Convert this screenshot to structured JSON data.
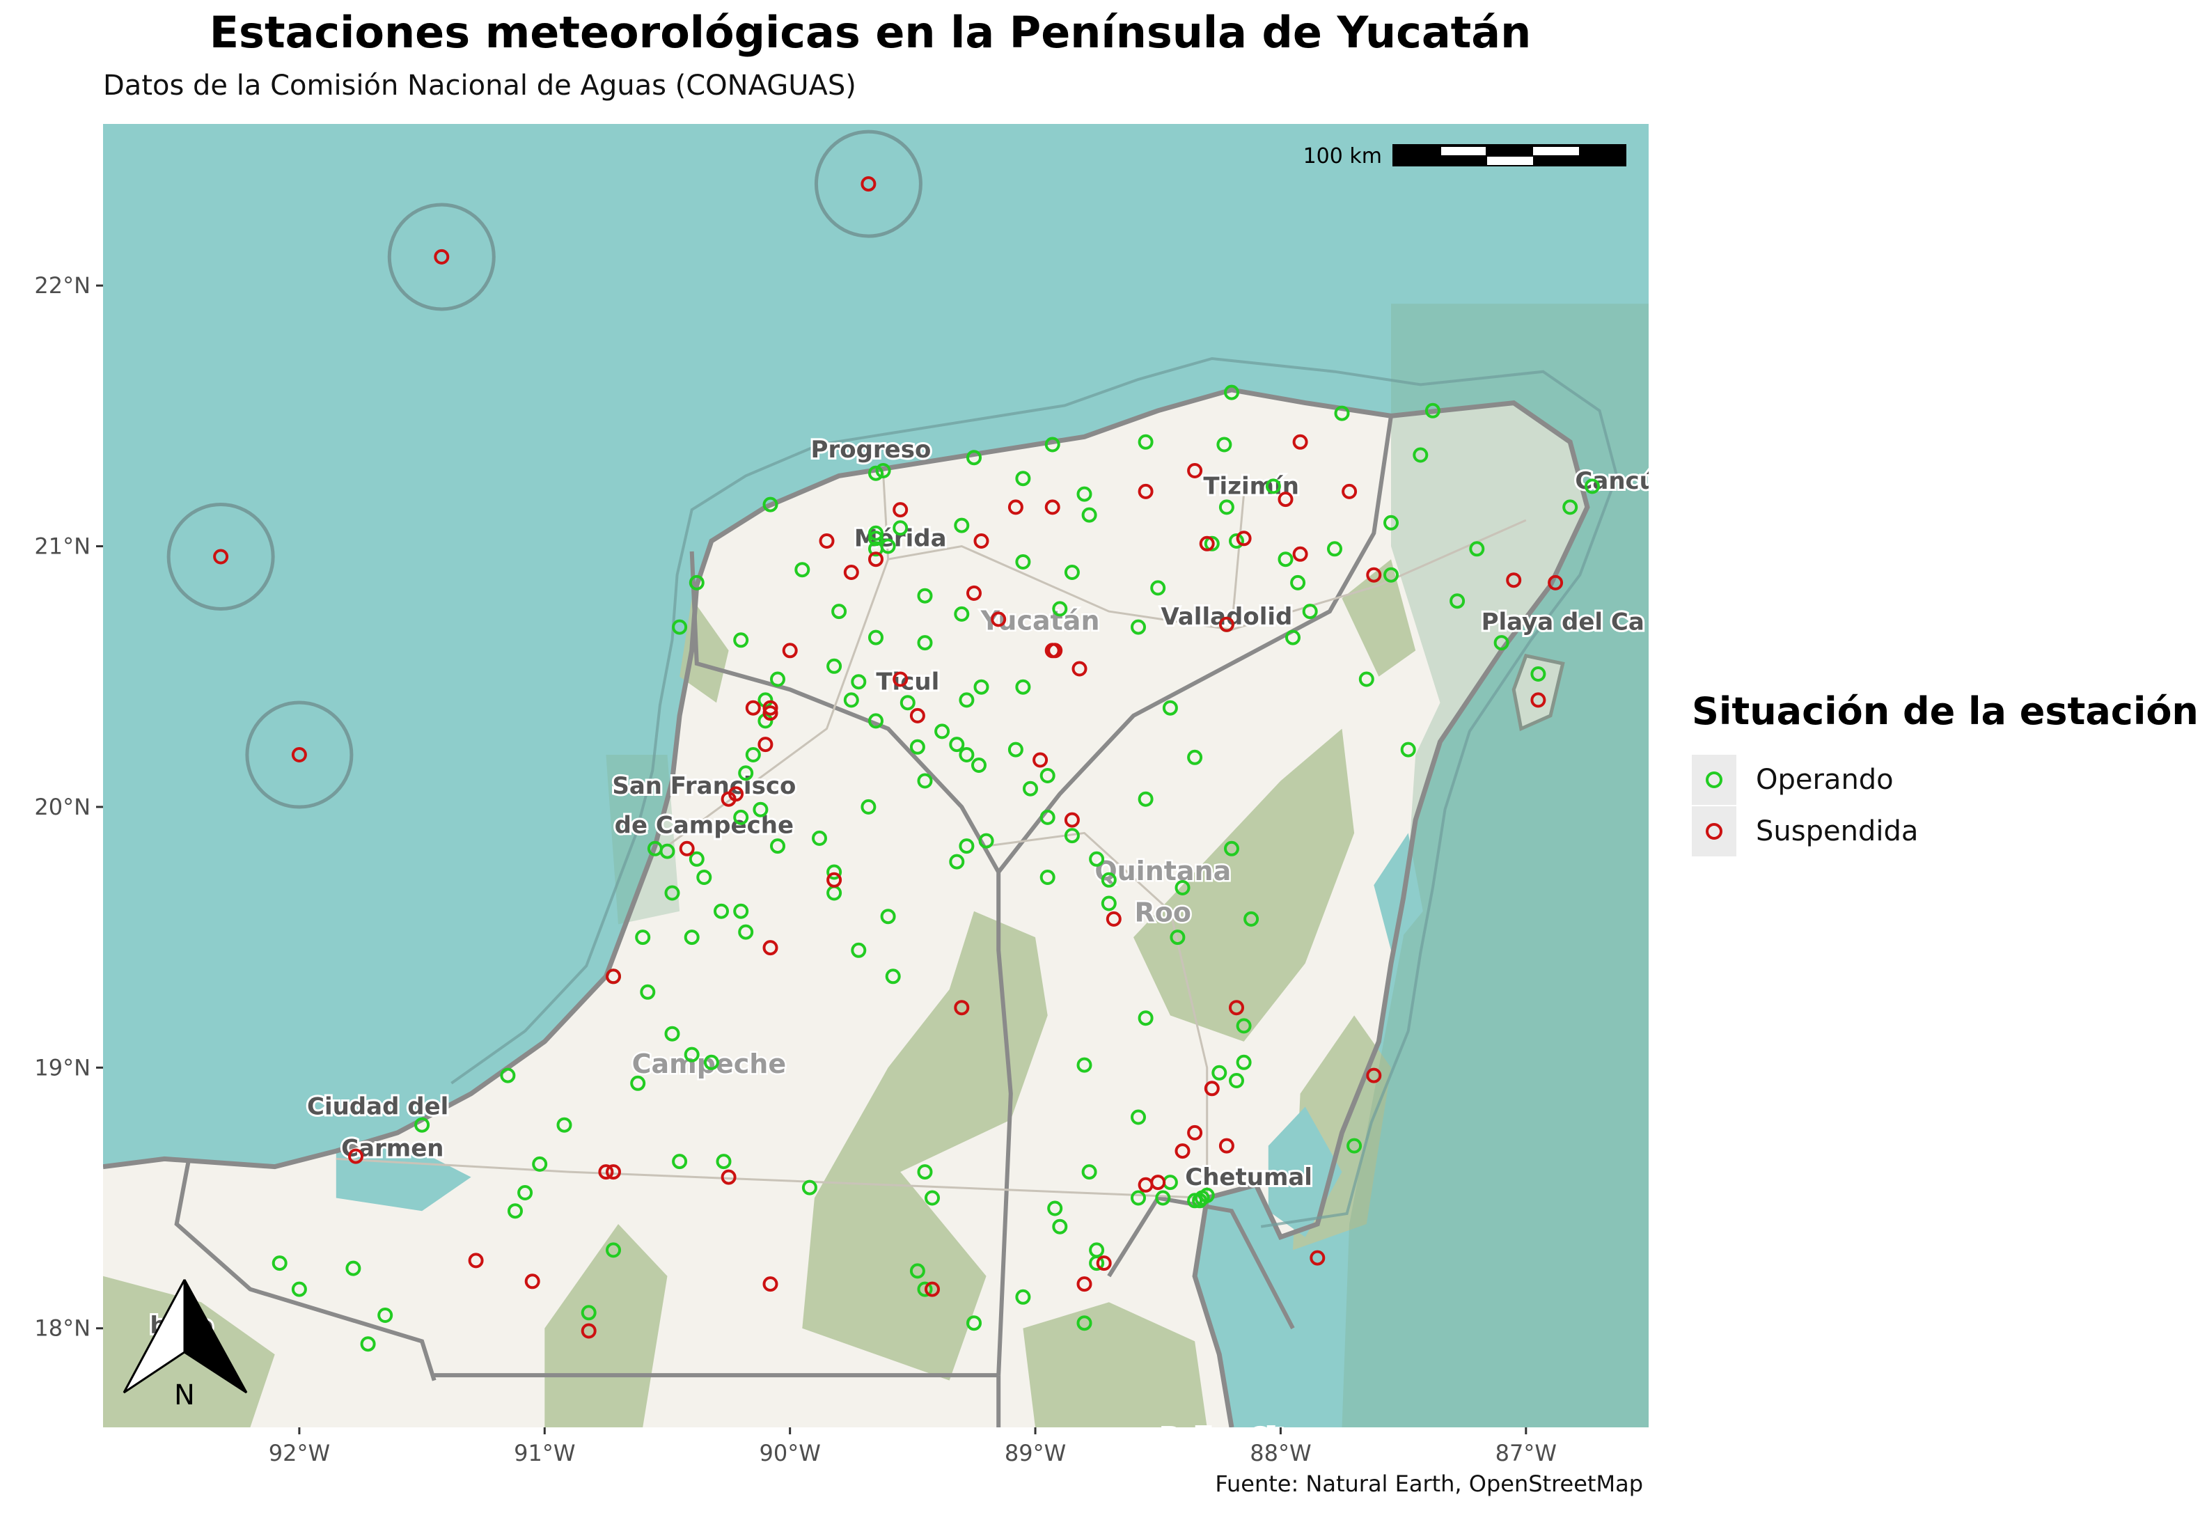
{
  "title": "Estaciones meteorológicas en la Península de Yucatán",
  "subtitle": "Datos de la Comisión Nacional de Aguas (CONAGUAS)",
  "caption": "Fuente: Natural Earth, OpenStreetMap",
  "scale_bar": {
    "label": "100 km"
  },
  "north_arrow": {
    "label": "N"
  },
  "legend": {
    "title": "Situación de la estación",
    "items": [
      {
        "label": "Operando",
        "color": "#22cc22"
      },
      {
        "label": "Suspendida",
        "color": "#cc1111"
      }
    ]
  },
  "colors": {
    "sea": "#8ecdcb",
    "land": "#f4f2ec",
    "forest": "#b7c8a0",
    "reserve": "#a6c4a8",
    "border": "#8a8a8a"
  },
  "axes": {
    "x_ticks": [
      {
        "value": -92,
        "label": "92°W"
      },
      {
        "value": -91,
        "label": "91°W"
      },
      {
        "value": -90,
        "label": "90°W"
      },
      {
        "value": -89,
        "label": "89°W"
      },
      {
        "value": -88,
        "label": "88°W"
      },
      {
        "value": -87,
        "label": "87°W"
      }
    ],
    "y_ticks": [
      {
        "value": 18,
        "label": "18°N"
      },
      {
        "value": 19,
        "label": "19°N"
      },
      {
        "value": 20,
        "label": "20°N"
      },
      {
        "value": 21,
        "label": "21°N"
      },
      {
        "value": 22,
        "label": "22°N"
      }
    ]
  },
  "places": [
    {
      "name": "Progreso",
      "lon": -89.67,
      "lat": 21.34
    },
    {
      "name": "Mérida",
      "lon": -89.55,
      "lat": 21.0
    },
    {
      "name": "Tizimín",
      "lon": -88.12,
      "lat": 21.2
    },
    {
      "name": "Valladolid",
      "lon": -88.22,
      "lat": 20.7
    },
    {
      "name": "Ticul",
      "lon": -89.52,
      "lat": 20.45
    },
    {
      "name": "San Francisco",
      "lon": -90.35,
      "lat": 20.05
    },
    {
      "name": "de Campeche",
      "lon": -90.35,
      "lat": 19.9
    },
    {
      "name": "Ciudad del",
      "lon": -91.68,
      "lat": 18.82
    },
    {
      "name": "Carmen",
      "lon": -91.62,
      "lat": 18.66
    },
    {
      "name": "Chetumal",
      "lon": -88.13,
      "lat": 18.55
    },
    {
      "name": "Cancún",
      "lon": -86.6,
      "lat": 21.22
    },
    {
      "name": "Playa del Ca",
      "lon": -86.85,
      "lat": 20.68
    },
    {
      "name": "Belize City",
      "lon": -88.2,
      "lat": 17.55
    },
    {
      "name": "baso",
      "lon": -92.48,
      "lat": 17.98
    }
  ],
  "state_labels": [
    {
      "name": "Yucatán",
      "lon": -88.98,
      "lat": 20.68
    },
    {
      "name": "Campeche",
      "lon": -90.33,
      "lat": 18.98
    },
    {
      "name": "Quintana",
      "lon": -88.48,
      "lat": 19.72
    },
    {
      "name": "Roo",
      "lon": -88.48,
      "lat": 19.56
    }
  ],
  "chart_data": {
    "type": "scatter",
    "xlim": [
      -92.8,
      -86.5
    ],
    "ylim": [
      17.62,
      22.62
    ],
    "series": [
      {
        "name": "Operando",
        "color": "#22cc22",
        "points": [
          [
            -89.65,
            21.28
          ],
          [
            -89.62,
            21.29
          ],
          [
            -89.25,
            21.34
          ],
          [
            -89.05,
            21.26
          ],
          [
            -88.93,
            21.39
          ],
          [
            -88.55,
            21.4
          ],
          [
            -88.2,
            21.59
          ],
          [
            -88.23,
            21.39
          ],
          [
            -88.03,
            21.23
          ],
          [
            -87.75,
            21.51
          ],
          [
            -87.38,
            21.52
          ],
          [
            -87.43,
            21.35
          ],
          [
            -86.73,
            21.23
          ],
          [
            -86.82,
            21.15
          ],
          [
            -90.08,
            21.16
          ],
          [
            -89.55,
            21.07
          ],
          [
            -89.65,
            21.05
          ],
          [
            -89.6,
            21.0
          ],
          [
            -89.65,
            20.99
          ],
          [
            -89.65,
            21.03
          ],
          [
            -89.3,
            21.08
          ],
          [
            -88.8,
            21.2
          ],
          [
            -88.78,
            21.12
          ],
          [
            -88.28,
            21.01
          ],
          [
            -88.18,
            21.02
          ],
          [
            -88.22,
            21.15
          ],
          [
            -87.98,
            20.95
          ],
          [
            -87.93,
            20.86
          ],
          [
            -87.88,
            20.75
          ],
          [
            -87.78,
            20.99
          ],
          [
            -87.55,
            21.09
          ],
          [
            -87.2,
            20.99
          ],
          [
            -87.28,
            20.79
          ],
          [
            -87.55,
            20.89
          ],
          [
            -87.65,
            20.49
          ],
          [
            -90.38,
            20.86
          ],
          [
            -90.45,
            20.69
          ],
          [
            -89.95,
            20.91
          ],
          [
            -89.8,
            20.75
          ],
          [
            -89.45,
            20.81
          ],
          [
            -89.3,
            20.74
          ],
          [
            -89.05,
            20.94
          ],
          [
            -88.9,
            20.76
          ],
          [
            -88.58,
            20.69
          ],
          [
            -88.85,
            20.9
          ],
          [
            -88.5,
            20.84
          ],
          [
            -88.22,
            20.7
          ],
          [
            -87.95,
            20.65
          ],
          [
            -87.1,
            20.63
          ],
          [
            -86.95,
            20.51
          ],
          [
            -90.2,
            20.64
          ],
          [
            -90.05,
            20.49
          ],
          [
            -89.82,
            20.54
          ],
          [
            -89.72,
            20.48
          ],
          [
            -89.75,
            20.41
          ],
          [
            -89.65,
            20.65
          ],
          [
            -89.45,
            20.63
          ],
          [
            -89.28,
            20.41
          ],
          [
            -89.22,
            20.46
          ],
          [
            -89.05,
            20.46
          ],
          [
            -88.45,
            20.38
          ],
          [
            -90.1,
            20.41
          ],
          [
            -90.1,
            20.33
          ],
          [
            -89.65,
            20.33
          ],
          [
            -89.52,
            20.4
          ],
          [
            -89.48,
            20.23
          ],
          [
            -89.38,
            20.29
          ],
          [
            -89.32,
            20.24
          ],
          [
            -89.28,
            20.2
          ],
          [
            -89.23,
            20.16
          ],
          [
            -89.08,
            20.22
          ],
          [
            -88.95,
            20.12
          ],
          [
            -89.02,
            20.07
          ],
          [
            -88.55,
            20.03
          ],
          [
            -88.35,
            20.19
          ],
          [
            -87.48,
            20.22
          ],
          [
            -90.15,
            20.2
          ],
          [
            -90.18,
            20.13
          ],
          [
            -90.12,
            19.99
          ],
          [
            -90.05,
            19.85
          ],
          [
            -90.2,
            19.96
          ],
          [
            -89.88,
            19.88
          ],
          [
            -89.68,
            20.0
          ],
          [
            -89.45,
            20.1
          ],
          [
            -89.32,
            19.79
          ],
          [
            -89.28,
            19.85
          ],
          [
            -89.2,
            19.87
          ],
          [
            -88.95,
            19.96
          ],
          [
            -88.85,
            19.89
          ],
          [
            -88.75,
            19.8
          ],
          [
            -88.95,
            19.73
          ],
          [
            -88.7,
            19.72
          ],
          [
            -88.7,
            19.63
          ],
          [
            -88.4,
            19.69
          ],
          [
            -88.2,
            19.84
          ],
          [
            -88.12,
            19.57
          ],
          [
            -88.42,
            19.5
          ],
          [
            -90.55,
            19.84
          ],
          [
            -90.5,
            19.83
          ],
          [
            -90.38,
            19.8
          ],
          [
            -90.35,
            19.73
          ],
          [
            -90.48,
            19.67
          ],
          [
            -90.28,
            19.6
          ],
          [
            -90.2,
            19.6
          ],
          [
            -90.18,
            19.52
          ],
          [
            -89.82,
            19.75
          ],
          [
            -89.82,
            19.67
          ],
          [
            -89.6,
            19.58
          ],
          [
            -89.72,
            19.45
          ],
          [
            -89.58,
            19.35
          ],
          [
            -90.6,
            19.5
          ],
          [
            -90.4,
            19.5
          ],
          [
            -90.72,
            19.35
          ],
          [
            -90.58,
            19.29
          ],
          [
            -90.48,
            19.13
          ],
          [
            -90.4,
            19.05
          ],
          [
            -90.32,
            19.02
          ],
          [
            -90.62,
            18.94
          ],
          [
            -88.55,
            19.19
          ],
          [
            -88.15,
            19.16
          ],
          [
            -88.15,
            19.02
          ],
          [
            -88.18,
            18.95
          ],
          [
            -88.25,
            18.98
          ],
          [
            -88.8,
            19.01
          ],
          [
            -88.58,
            18.81
          ],
          [
            -88.78,
            18.6
          ],
          [
            -88.92,
            18.46
          ],
          [
            -88.9,
            18.39
          ],
          [
            -88.58,
            18.5
          ],
          [
            -88.48,
            18.5
          ],
          [
            -88.45,
            18.56
          ],
          [
            -88.33,
            18.49
          ],
          [
            -88.3,
            18.51
          ],
          [
            -88.32,
            18.5
          ],
          [
            -88.35,
            18.49
          ],
          [
            -87.7,
            18.7
          ],
          [
            -91.15,
            18.97
          ],
          [
            -91.08,
            18.52
          ],
          [
            -91.12,
            18.45
          ],
          [
            -91.02,
            18.63
          ],
          [
            -90.92,
            18.78
          ],
          [
            -90.45,
            18.64
          ],
          [
            -90.27,
            18.64
          ],
          [
            -89.92,
            18.54
          ],
          [
            -89.45,
            18.6
          ],
          [
            -89.42,
            18.5
          ],
          [
            -90.72,
            18.3
          ],
          [
            -91.5,
            18.78
          ],
          [
            -92.08,
            18.25
          ],
          [
            -92.0,
            18.15
          ],
          [
            -91.78,
            18.23
          ],
          [
            -91.65,
            18.05
          ],
          [
            -91.72,
            17.94
          ],
          [
            -90.82,
            18.06
          ],
          [
            -89.48,
            18.22
          ],
          [
            -89.45,
            18.15
          ],
          [
            -89.05,
            18.12
          ],
          [
            -89.25,
            18.02
          ],
          [
            -88.75,
            18.3
          ],
          [
            -88.75,
            18.25
          ],
          [
            -88.8,
            18.02
          ]
        ]
      },
      {
        "name": "Suspendida",
        "color": "#cc1111",
        "points": [
          [
            -89.68,
            22.39
          ],
          [
            -91.42,
            22.11
          ],
          [
            -92.32,
            20.96
          ],
          [
            -92.0,
            20.2
          ],
          [
            -87.92,
            21.4
          ],
          [
            -88.35,
            21.29
          ],
          [
            -88.55,
            21.21
          ],
          [
            -88.93,
            21.15
          ],
          [
            -89.08,
            21.15
          ],
          [
            -89.55,
            21.14
          ],
          [
            -87.72,
            21.21
          ],
          [
            -87.98,
            21.18
          ],
          [
            -88.3,
            21.01
          ],
          [
            -88.15,
            21.03
          ],
          [
            -87.92,
            20.97
          ],
          [
            -87.62,
            20.89
          ],
          [
            -87.05,
            20.87
          ],
          [
            -86.88,
            20.86
          ],
          [
            -86.95,
            20.41
          ],
          [
            -89.85,
            21.02
          ],
          [
            -89.65,
            20.95
          ],
          [
            -89.75,
            20.9
          ],
          [
            -89.22,
            21.02
          ],
          [
            -89.25,
            20.82
          ],
          [
            -89.15,
            20.72
          ],
          [
            -88.22,
            20.7
          ],
          [
            -88.92,
            20.6
          ],
          [
            -88.93,
            20.6
          ],
          [
            -88.82,
            20.53
          ],
          [
            -89.55,
            20.49
          ],
          [
            -90.0,
            20.6
          ],
          [
            -90.15,
            20.38
          ],
          [
            -90.08,
            20.36
          ],
          [
            -90.08,
            20.38
          ],
          [
            -89.48,
            20.35
          ],
          [
            -90.1,
            20.24
          ],
          [
            -88.98,
            20.18
          ],
          [
            -90.22,
            20.05
          ],
          [
            -90.25,
            20.03
          ],
          [
            -88.85,
            19.95
          ],
          [
            -90.42,
            19.84
          ],
          [
            -89.82,
            19.72
          ],
          [
            -88.68,
            19.57
          ],
          [
            -90.08,
            19.46
          ],
          [
            -89.3,
            19.23
          ],
          [
            -88.18,
            19.23
          ],
          [
            -90.72,
            19.35
          ],
          [
            -87.62,
            18.97
          ],
          [
            -88.28,
            18.92
          ],
          [
            -88.35,
            18.75
          ],
          [
            -88.22,
            18.7
          ],
          [
            -88.4,
            18.68
          ],
          [
            -88.5,
            18.56
          ],
          [
            -88.55,
            18.55
          ],
          [
            -91.77,
            18.66
          ],
          [
            -90.75,
            18.6
          ],
          [
            -90.72,
            18.6
          ],
          [
            -90.25,
            18.58
          ],
          [
            -91.28,
            18.26
          ],
          [
            -91.05,
            18.18
          ],
          [
            -90.82,
            17.99
          ],
          [
            -90.08,
            18.17
          ],
          [
            -89.42,
            18.15
          ],
          [
            -88.8,
            18.17
          ],
          [
            -88.72,
            18.25
          ],
          [
            -87.85,
            18.27
          ]
        ]
      }
    ]
  }
}
